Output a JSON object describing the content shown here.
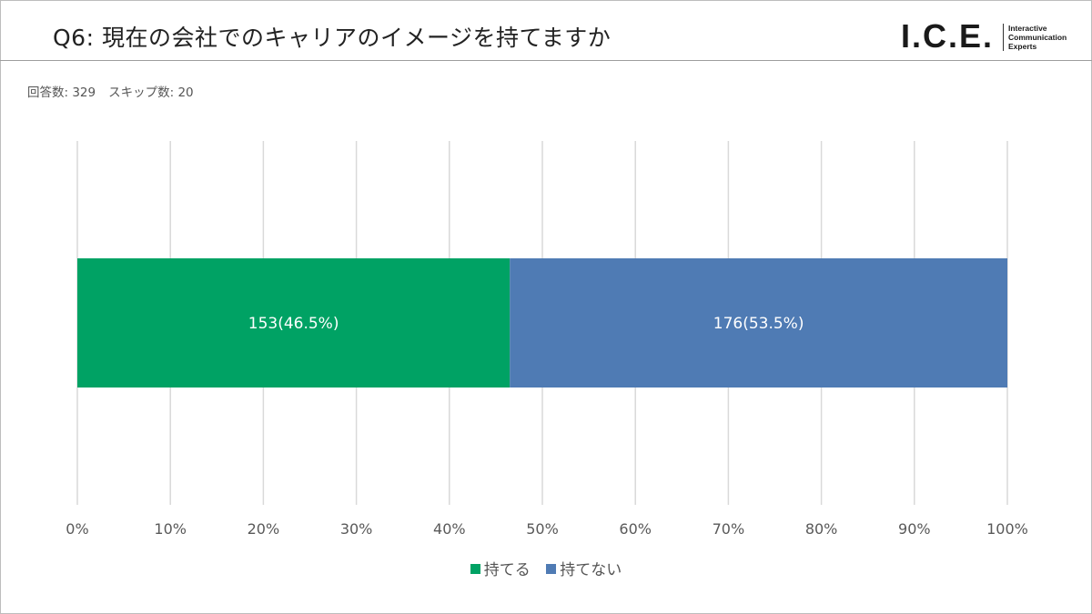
{
  "header": {
    "title": "Q6: 現在の会社でのキャリアのイメージを持てますか",
    "logo": {
      "mark": "I.C.E.",
      "tagline": [
        "Interactive",
        "Communication",
        "Experts"
      ]
    }
  },
  "meta": {
    "responses": "回答数: 329",
    "skipped": "スキップ数: 20"
  },
  "colors": {
    "series1": "#00a264",
    "series2": "#4f7bb4",
    "grid": "#d9d9d9",
    "axis_text": "#595959"
  },
  "chart_data": {
    "type": "bar",
    "orientation": "horizontal",
    "stacked": true,
    "categories": [
      ""
    ],
    "series": [
      {
        "name": "持てる",
        "values": [
          46.5
        ],
        "count": 153,
        "label": "153(46.5%)"
      },
      {
        "name": "持てない",
        "values": [
          53.5
        ],
        "count": 176,
        "label": "176(53.5%)"
      }
    ],
    "xlim": [
      0,
      100
    ],
    "x_ticks": [
      "0%",
      "10%",
      "20%",
      "30%",
      "40%",
      "50%",
      "60%",
      "70%",
      "80%",
      "90%",
      "100%"
    ],
    "grid": "vertical",
    "legend_position": "bottom"
  }
}
